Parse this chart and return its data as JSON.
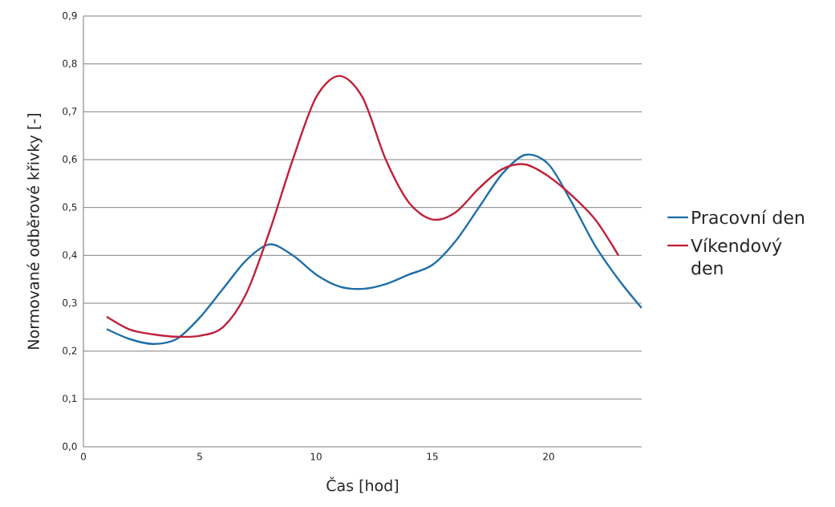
{
  "chart_data": {
    "type": "line",
    "xlabel": "Čas [hod]",
    "ylabel": "Normované odběrové křivky [-]",
    "xlim": [
      0,
      24
    ],
    "xticks": [
      0,
      5,
      10,
      15,
      20
    ],
    "ylim": [
      0,
      0.9
    ],
    "yticks": [
      {
        "value": 0,
        "label": "0,0"
      },
      {
        "value": 0.1,
        "label": "0,1"
      },
      {
        "value": 0.2,
        "label": "0,2"
      },
      {
        "value": 0.3,
        "label": "0,3"
      },
      {
        "value": 0.4,
        "label": "0,4"
      },
      {
        "value": 0.5,
        "label": "0,5"
      },
      {
        "value": 0.6,
        "label": "0,6"
      },
      {
        "value": 0.7,
        "label": "0,7"
      },
      {
        "value": 0.8,
        "label": "0,8"
      },
      {
        "value": 0.9,
        "label": "0,9"
      }
    ],
    "grid": "y",
    "legend": "right",
    "marker": "none",
    "line_style": "solid",
    "series": [
      {
        "name": "Pracovní den",
        "color": "#1f6fa8",
        "x": [
          1,
          2,
          3,
          4,
          5,
          6,
          7,
          8,
          9,
          10,
          11,
          12,
          13,
          14,
          15,
          16,
          17,
          18,
          19,
          20,
          21,
          22,
          23,
          24
        ],
        "values": [
          0.246,
          0.225,
          0.215,
          0.225,
          0.27,
          0.33,
          0.39,
          0.423,
          0.4,
          0.36,
          0.335,
          0.33,
          0.34,
          0.36,
          0.38,
          0.43,
          0.5,
          0.57,
          0.61,
          0.59,
          0.51,
          0.42,
          0.35,
          0.29
        ]
      },
      {
        "name": "Víkendový den",
        "color": "#c0213a",
        "x": [
          1,
          2,
          3,
          4,
          5,
          6,
          7,
          8,
          9,
          10,
          11,
          12,
          13,
          14,
          15,
          16,
          17,
          18,
          19,
          20,
          21,
          22,
          23
        ],
        "values": [
          0.272,
          0.245,
          0.235,
          0.23,
          0.232,
          0.25,
          0.32,
          0.45,
          0.6,
          0.73,
          0.775,
          0.73,
          0.6,
          0.51,
          0.475,
          0.49,
          0.54,
          0.58,
          0.59,
          0.565,
          0.525,
          0.475,
          0.4
        ]
      }
    ]
  }
}
